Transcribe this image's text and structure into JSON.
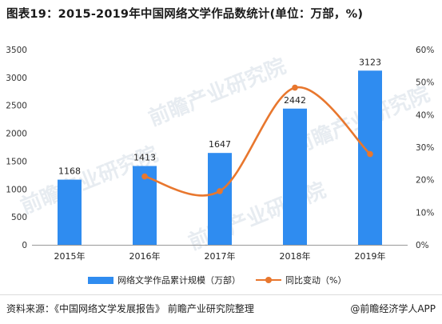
{
  "title": "图表19：2015-2019年中国网络文学作品数统计(单位：万部，%)",
  "watermark": "前瞻产业研究院",
  "source": "资料来源：《中国网络文学发展报告》 前瞻产业研究院整理",
  "brand": "@前瞻经济学人APP",
  "colors": {
    "bar": "#2f8cf0",
    "line": "#e8772e"
  },
  "chart_data": {
    "type": "bar",
    "categories": [
      "2015年",
      "2016年",
      "2017年",
      "2018年",
      "2019年"
    ],
    "series": [
      {
        "name": "网络文学作品累计规模（万部）",
        "type": "bar",
        "axis": "left",
        "values": [
          1168,
          1413,
          1647,
          2442,
          3123
        ]
      },
      {
        "name": "同比变动（%）",
        "type": "line",
        "axis": "right",
        "values": [
          null,
          21,
          16.5,
          48.3,
          27.9
        ]
      }
    ],
    "y_left": {
      "min": 0,
      "max": 3500,
      "ticks": [
        "0",
        "500",
        "1000",
        "1500",
        "2000",
        "2500",
        "3000",
        "3500"
      ]
    },
    "y_right": {
      "min": 0,
      "max": 60,
      "ticks": [
        "0%",
        "10%",
        "20%",
        "30%",
        "40%",
        "50%",
        "60%"
      ]
    },
    "grid": false,
    "legend": "bottom"
  }
}
